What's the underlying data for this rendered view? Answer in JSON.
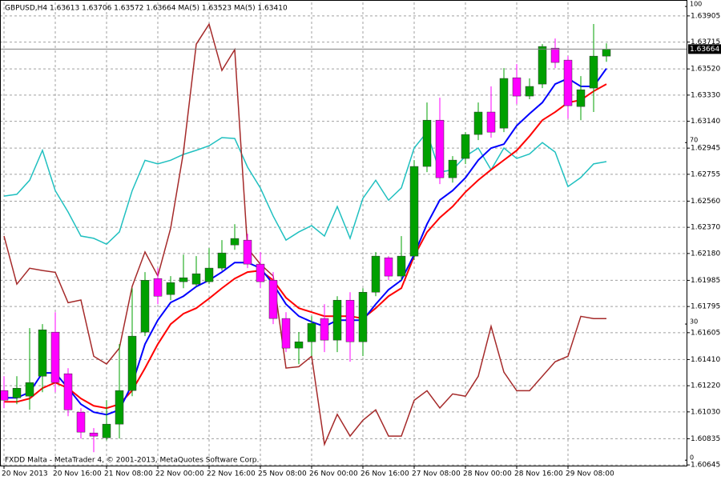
{
  "chart_data": {
    "type": "candlestick",
    "title": "GBPUSD,H4  1.63613 1.63706 1.63572 1.63664  MA(5) 1.63523  MA(5) 1.63410",
    "footer": "FXDD Malta - MetaTrader 4, © 2001-2013, MetaQuotes Software Corp.",
    "categories": [
      "20 Nov 2013",
      null,
      null,
      null,
      "20 Nov 16:00",
      null,
      null,
      null,
      "21 Nov 08:00",
      null,
      null,
      null,
      "22 Nov 00:00",
      null,
      null,
      null,
      "22 Nov 16:00",
      null,
      null,
      null,
      "25 Nov 08:00",
      null,
      null,
      null,
      "26 Nov 00:00",
      null,
      null,
      null,
      "26 Nov 16:00",
      null,
      null,
      null,
      "27 Nov 08:00",
      null,
      null,
      null,
      "28 Nov 00:00",
      null,
      null,
      null,
      "28 Nov 16:00",
      null,
      null,
      null,
      "29 Nov 08:00",
      null,
      null,
      null
    ],
    "open": [
      1.61185,
      1.61132,
      1.61144,
      1.61289,
      1.61609,
      1.61307,
      1.61028,
      1.60877,
      1.60842,
      1.60941,
      1.61185,
      1.61609,
      1.61998,
      1.61882,
      1.61975,
      1.61957,
      1.61975,
      1.62074,
      1.62242,
      1.62277,
      1.62103,
      1.61986,
      1.61708,
      1.61493,
      1.61539,
      1.61708,
      1.61551,
      1.61841,
      1.61539,
      1.61899,
      1.62149,
      1.62016,
      1.62161,
      1.62812,
      1.63148,
      1.6273,
      1.6287,
      1.63044,
      1.63207,
      1.6309,
      1.63456,
      1.63323,
      1.6341,
      1.63671,
      1.63584,
      1.63247,
      1.63381,
      1.63613
    ],
    "high": [
      1.61289,
      1.61289,
      1.61638,
      1.61667,
      1.61754,
      1.61347,
      1.61057,
      1.60912,
      1.61115,
      1.61522,
      1.61928,
      1.62045,
      1.62074,
      1.62016,
      1.62172,
      1.62161,
      1.62219,
      1.62277,
      1.62393,
      1.62323,
      1.6219,
      1.62045,
      1.61754,
      1.61609,
      1.61725,
      1.61812,
      1.6187,
      1.61899,
      1.61928,
      1.6219,
      1.62161,
      1.62306,
      1.62858,
      1.63276,
      1.63311,
      1.62887,
      1.63061,
      1.63276,
      1.63393,
      1.63526,
      1.63555,
      1.63451,
      1.637,
      1.63741,
      1.63613,
      1.63468,
      1.63846,
      1.63706
    ],
    "low": [
      1.61057,
      1.61086,
      1.61045,
      1.61173,
      1.61173,
      1.60999,
      1.60836,
      1.60737,
      1.60824,
      1.60836,
      1.61144,
      1.6158,
      1.61812,
      1.61841,
      1.61928,
      1.6194,
      1.61957,
      1.62056,
      1.62207,
      1.62074,
      1.61928,
      1.61667,
      1.61464,
      1.61376,
      1.61435,
      1.61464,
      1.61464,
      1.61394,
      1.61435,
      1.6187,
      1.61986,
      1.61986,
      1.62132,
      1.62771,
      1.62684,
      1.62695,
      1.62829,
      1.63003,
      1.63021,
      1.63061,
      1.63265,
      1.633,
      1.63381,
      1.63526,
      1.6316,
      1.63148,
      1.63207,
      1.63572
    ],
    "close": [
      1.61115,
      1.61202,
      1.61243,
      1.61626,
      1.61243,
      1.61045,
      1.60883,
      1.60854,
      1.60941,
      1.61185,
      1.6158,
      1.61986,
      1.6187,
      1.61969,
      1.62004,
      1.62033,
      1.62074,
      1.62184,
      1.62289,
      1.62103,
      1.61975,
      1.61708,
      1.61493,
      1.61539,
      1.61673,
      1.61551,
      1.61841,
      1.61539,
      1.61899,
      1.62161,
      1.62016,
      1.62161,
      1.62812,
      1.63148,
      1.6273,
      1.62858,
      1.63044,
      1.63207,
      1.63061,
      1.63451,
      1.63323,
      1.63393,
      1.63683,
      1.63567,
      1.63253,
      1.63369,
      1.63613,
      1.63664
    ],
    "up_color": "#00a000",
    "down_color": "#ff00ff",
    "series": [
      {
        "color": "#20c0c0",
        "axis": "y2",
        "values": [
          58.2,
          58.6,
          61.7,
          68.3,
          59.4,
          54.7,
          49.4,
          48.9,
          47.6,
          50.3,
          59.4,
          66.1,
          65.3,
          66.1,
          67.4,
          68.3,
          69.3,
          71.1,
          70.9,
          64.6,
          60.0,
          53.8,
          48.5,
          50.3,
          51.7,
          49.4,
          55.9,
          48.9,
          57.7,
          61.7,
          57.3,
          60.0,
          68.8,
          72.3,
          63.5,
          64.0,
          67.0,
          68.8,
          64.0,
          68.8,
          66.5,
          67.5,
          70.0,
          67.9,
          60.3,
          62.3,
          65.3,
          65.8
        ]
      },
      {
        "color": "#a52a2a",
        "axis": "y2",
        "values": [
          49.4,
          38.8,
          42.3,
          41.8,
          41.4,
          34.7,
          35.3,
          22.9,
          21.2,
          24.7,
          38.3,
          45.9,
          40.6,
          51.1,
          67.9,
          91.7,
          96.1,
          85.9,
          90.5,
          46.7,
          43.2,
          40.6,
          20.3,
          20.6,
          22.9,
          3.5,
          10.1,
          5.3,
          8.8,
          11.1,
          5.3,
          5.3,
          13.2,
          15.3,
          11.5,
          14.6,
          14.1,
          18.5,
          29.5,
          19.4,
          15.3,
          15.3,
          18.5,
          21.7,
          22.9,
          31.7,
          31.2,
          31.2
        ]
      },
      {
        "color": "#ff0000",
        "values": [
          1.61103,
          1.61103,
          1.61127,
          1.61202,
          1.61243,
          1.61202,
          1.61127,
          1.61074,
          1.61057,
          1.61086,
          1.61185,
          1.61347,
          1.61522,
          1.61667,
          1.61743,
          1.61783,
          1.61853,
          1.61928,
          1.61998,
          1.62045,
          1.62056,
          1.61986,
          1.61859,
          1.61783,
          1.61754,
          1.61725,
          1.61725,
          1.61725,
          1.61708,
          1.61783,
          1.6187,
          1.61928,
          1.62161,
          1.62335,
          1.6244,
          1.62521,
          1.62626,
          1.62713,
          1.62788,
          1.62858,
          1.62928,
          1.63032,
          1.63148,
          1.63207,
          1.63276,
          1.63294,
          1.63358,
          1.6341
        ]
      },
      {
        "color": "#0000ff",
        "values": [
          1.61132,
          1.61132,
          1.61173,
          1.61313,
          1.61313,
          1.61202,
          1.61086,
          1.61028,
          1.6101,
          1.61045,
          1.61231,
          1.61522,
          1.61696,
          1.61824,
          1.6187,
          1.6194,
          1.61986,
          1.62045,
          1.62114,
          1.62114,
          1.62074,
          1.61957,
          1.61812,
          1.61725,
          1.61684,
          1.6165,
          1.61696,
          1.61696,
          1.61696,
          1.61812,
          1.61917,
          1.61986,
          1.62172,
          1.62393,
          1.62568,
          1.62637,
          1.6273,
          1.62858,
          1.62945,
          1.62974,
          1.63108,
          1.63195,
          1.63276,
          1.6341,
          1.63451,
          1.63393,
          1.63393,
          1.63523
        ]
      }
    ],
    "ylim": [
      1.6064,
      1.64003
    ],
    "yticks": [
      1.63905,
      1.63715,
      {
        "value": 1.6352,
        "label": "1.63520"
      },
      {
        "value": 1.6333,
        "label": "1.63330"
      },
      {
        "value": 1.6314,
        "label": "1.63140"
      },
      1.62945,
      1.62755,
      {
        "value": 1.6256,
        "label": "1.62560"
      },
      {
        "value": 1.6237,
        "label": "1.62370"
      },
      {
        "value": 1.6218,
        "label": "1.62180"
      },
      1.61985,
      1.61795,
      1.61605,
      {
        "value": 1.6141,
        "label": "1.61410"
      },
      {
        "value": 1.6122,
        "label": "1.61220"
      },
      {
        "value": 1.6103,
        "label": "1.61030"
      },
      1.60835,
      1.60645
    ],
    "y2lim": [
      -1.2,
      100.9
    ],
    "y2ticks": [
      100,
      70,
      30,
      0
    ],
    "grid": true
  }
}
